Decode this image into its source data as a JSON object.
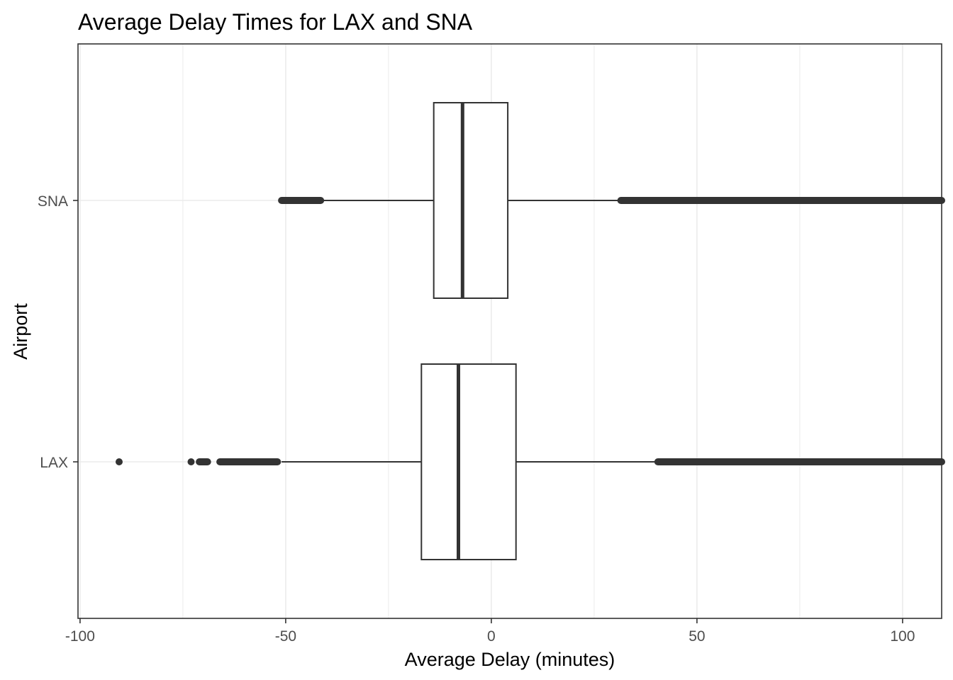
{
  "chart_data": {
    "type": "boxplot",
    "orientation": "horizontal",
    "title": "Average Delay Times for LAX and SNA",
    "xlabel": "Average Delay (minutes)",
    "ylabel": "Airport",
    "xlim": [
      -100.5,
      109.5
    ],
    "x_ticks": [
      -100,
      -50,
      0,
      50,
      100
    ],
    "x_tick_labels": [
      "-100",
      "-50",
      "0",
      "50",
      "100"
    ],
    "x_minor_ticks": [
      -75,
      -25,
      25,
      75
    ],
    "categories": [
      "LAX",
      "SNA"
    ],
    "grid": true,
    "legend": "none",
    "colors": {
      "box_stroke": "#333333",
      "box_fill": "#ffffff",
      "grid": "#ebebeb",
      "panel_border": "#333333"
    },
    "boxes": [
      {
        "category": "LAX",
        "q1": -17,
        "median": -8,
        "q3": 6,
        "whisker_low": -51,
        "whisker_high": 40,
        "outlier_ranges": [
          [
            -66,
            -52
          ],
          [
            -71,
            -69
          ],
          [
            40.5,
            109.5
          ]
        ],
        "outlier_points": [
          -90.5,
          -73
        ]
      },
      {
        "category": "SNA",
        "q1": -14,
        "median": -7,
        "q3": 4,
        "whisker_low": -41,
        "whisker_high": 31,
        "outlier_ranges": [
          [
            -51,
            -41.5
          ],
          [
            31.5,
            109.5
          ]
        ],
        "outlier_points": []
      }
    ]
  }
}
